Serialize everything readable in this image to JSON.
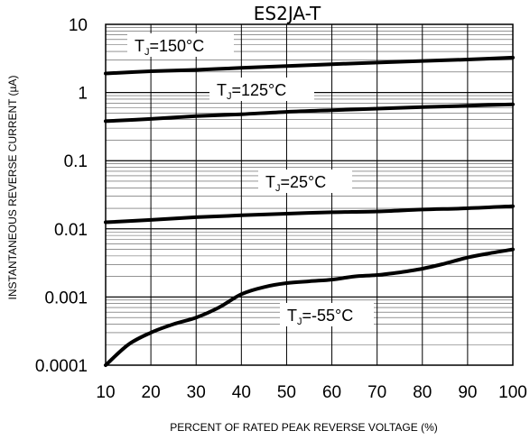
{
  "chart_data": {
    "type": "line",
    "title": "ES2JA-T",
    "xlabel": "PERCENT OF RATED PEAK REVERSE VOLTAGE (%)",
    "ylabel": "INSTANTANEOUS REVERSE CURRENT (µA)",
    "xlim": [
      10,
      100
    ],
    "ylim": [
      0.0001,
      10
    ],
    "yscale": "log",
    "grid": true,
    "x_ticks": [
      "10",
      "20",
      "30",
      "40",
      "50",
      "60",
      "70",
      "80",
      "90",
      "100"
    ],
    "y_ticks": [
      "10",
      "1",
      "0.1",
      "0.01",
      "0.001",
      "0.0001"
    ],
    "series": [
      {
        "label_main": "T",
        "label_sub": "J",
        "label_rest": "=150°C",
        "x": [
          10,
          20,
          30,
          40,
          50,
          60,
          70,
          80,
          90,
          100
        ],
        "y": [
          1.9,
          2.05,
          2.15,
          2.3,
          2.45,
          2.6,
          2.75,
          2.9,
          3.05,
          3.25
        ]
      },
      {
        "label_main": "T",
        "label_sub": "J",
        "label_rest": "=125°C",
        "x": [
          10,
          20,
          30,
          40,
          50,
          60,
          70,
          80,
          90,
          100
        ],
        "y": [
          0.38,
          0.41,
          0.45,
          0.48,
          0.52,
          0.55,
          0.58,
          0.61,
          0.64,
          0.67
        ]
      },
      {
        "label_main": "T",
        "label_sub": "J",
        "label_rest": "=25°C",
        "x": [
          10,
          20,
          30,
          40,
          50,
          60,
          70,
          80,
          90,
          100
        ],
        "y": [
          0.0125,
          0.0135,
          0.0148,
          0.0158,
          0.0167,
          0.0175,
          0.018,
          0.0192,
          0.02,
          0.0215
        ]
      },
      {
        "label_main": "T",
        "label_sub": "J",
        "label_rest": "=-55°C",
        "x": [
          10,
          15,
          20,
          25,
          30,
          35,
          40,
          45,
          50,
          55,
          60,
          65,
          70,
          75,
          80,
          85,
          90,
          95,
          100
        ],
        "y": [
          0.0001,
          0.0002,
          0.0003,
          0.0004,
          0.0005,
          0.0007,
          0.0011,
          0.0014,
          0.0016,
          0.0017,
          0.0018,
          0.002,
          0.0021,
          0.0023,
          0.0026,
          0.0031,
          0.0038,
          0.0044,
          0.005
        ]
      }
    ],
    "colors": {
      "line": "#000000",
      "grid": "#555555",
      "background": "#ffffff"
    }
  }
}
